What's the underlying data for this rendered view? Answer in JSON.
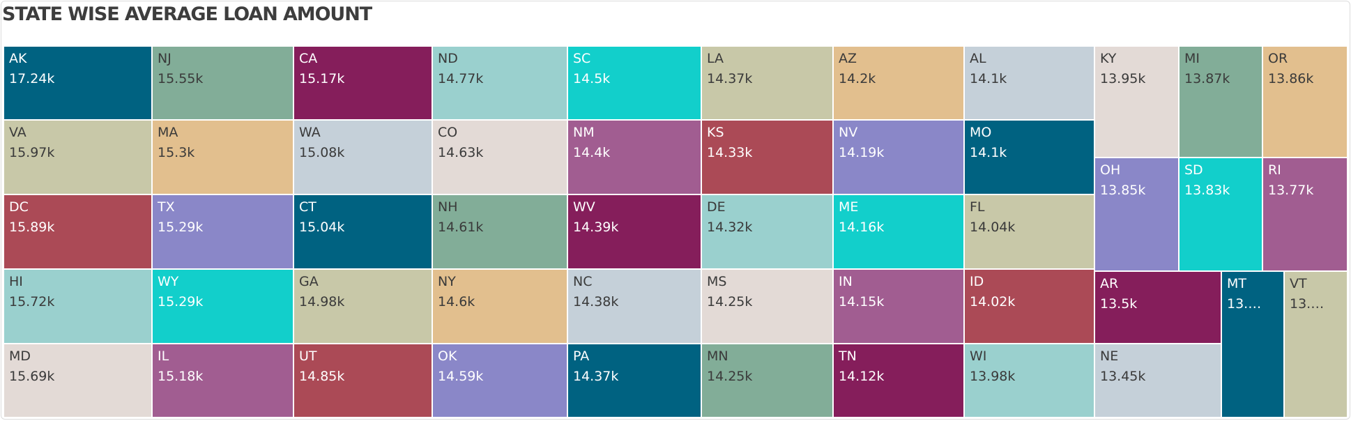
{
  "title": "STATE WISE AVERAGE LOAN AMOUNT",
  "chart_data": {
    "type": "treemap",
    "title": "STATE WISE AVERAGE LOAN AMOUNT",
    "unit": "k",
    "series": [
      {
        "label": "AK",
        "value": 17.24,
        "value_label": "17.24k",
        "color": "#006281"
      },
      {
        "label": "VA",
        "value": 15.97,
        "value_label": "15.97k",
        "color": "#c8c8a8"
      },
      {
        "label": "DC",
        "value": 15.89,
        "value_label": "15.89k",
        "color": "#ab4a56"
      },
      {
        "label": "HI",
        "value": 15.72,
        "value_label": "15.72k",
        "color": "#9ad0ce"
      },
      {
        "label": "MD",
        "value": 15.69,
        "value_label": "15.69k",
        "color": "#e3dad6"
      },
      {
        "label": "NJ",
        "value": 15.55,
        "value_label": "15.55k",
        "color": "#82ad98"
      },
      {
        "label": "MA",
        "value": 15.3,
        "value_label": "15.3k",
        "color": "#e2bf8e"
      },
      {
        "label": "TX",
        "value": 15.29,
        "value_label": "15.29k",
        "color": "#8a87c8"
      },
      {
        "label": "WY",
        "value": 15.29,
        "value_label": "15.29k",
        "color": "#12cfcb"
      },
      {
        "label": "IL",
        "value": 15.18,
        "value_label": "15.18k",
        "color": "#a15d91"
      },
      {
        "label": "CA",
        "value": 15.17,
        "value_label": "15.17k",
        "color": "#851e5b"
      },
      {
        "label": "WA",
        "value": 15.08,
        "value_label": "15.08k",
        "color": "#c5d0d9"
      },
      {
        "label": "CT",
        "value": 15.04,
        "value_label": "15.04k",
        "color": "#006281"
      },
      {
        "label": "GA",
        "value": 14.98,
        "value_label": "14.98k",
        "color": "#c8c8a8"
      },
      {
        "label": "UT",
        "value": 14.85,
        "value_label": "14.85k",
        "color": "#ab4a56"
      },
      {
        "label": "ND",
        "value": 14.77,
        "value_label": "14.77k",
        "color": "#9ad0ce"
      },
      {
        "label": "CO",
        "value": 14.63,
        "value_label": "14.63k",
        "color": "#e3dad6"
      },
      {
        "label": "NH",
        "value": 14.61,
        "value_label": "14.61k",
        "color": "#82ad98"
      },
      {
        "label": "NY",
        "value": 14.6,
        "value_label": "14.6k",
        "color": "#e2bf8e"
      },
      {
        "label": "OK",
        "value": 14.59,
        "value_label": "14.59k",
        "color": "#8a87c8"
      },
      {
        "label": "SC",
        "value": 14.5,
        "value_label": "14.5k",
        "color": "#12cfcb"
      },
      {
        "label": "NM",
        "value": 14.4,
        "value_label": "14.4k",
        "color": "#a15d91"
      },
      {
        "label": "WV",
        "value": 14.39,
        "value_label": "14.39k",
        "color": "#851e5b"
      },
      {
        "label": "NC",
        "value": 14.38,
        "value_label": "14.38k",
        "color": "#c5d0d9"
      },
      {
        "label": "PA",
        "value": 14.37,
        "value_label": "14.37k",
        "color": "#006281"
      },
      {
        "label": "LA",
        "value": 14.37,
        "value_label": "14.37k",
        "color": "#c8c8a8"
      },
      {
        "label": "KS",
        "value": 14.33,
        "value_label": "14.33k",
        "color": "#ab4a56"
      },
      {
        "label": "DE",
        "value": 14.32,
        "value_label": "14.32k",
        "color": "#9ad0ce"
      },
      {
        "label": "MS",
        "value": 14.25,
        "value_label": "14.25k",
        "color": "#e3dad6"
      },
      {
        "label": "MN",
        "value": 14.25,
        "value_label": "14.25k",
        "color": "#82ad98"
      },
      {
        "label": "AZ",
        "value": 14.2,
        "value_label": "14.2k",
        "color": "#e2bf8e"
      },
      {
        "label": "NV",
        "value": 14.19,
        "value_label": "14.19k",
        "color": "#8a87c8"
      },
      {
        "label": "ME",
        "value": 14.16,
        "value_label": "14.16k",
        "color": "#12cfcb"
      },
      {
        "label": "IN",
        "value": 14.15,
        "value_label": "14.15k",
        "color": "#a15d91"
      },
      {
        "label": "TN",
        "value": 14.12,
        "value_label": "14.12k",
        "color": "#851e5b"
      },
      {
        "label": "AL",
        "value": 14.1,
        "value_label": "14.1k",
        "color": "#c5d0d9"
      },
      {
        "label": "MO",
        "value": 14.1,
        "value_label": "14.1k",
        "color": "#006281"
      },
      {
        "label": "FL",
        "value": 14.04,
        "value_label": "14.04k",
        "color": "#c8c8a8"
      },
      {
        "label": "ID",
        "value": 14.02,
        "value_label": "14.02k",
        "color": "#ab4a56"
      },
      {
        "label": "WI",
        "value": 13.98,
        "value_label": "13.98k",
        "color": "#9ad0ce"
      },
      {
        "label": "KY",
        "value": 13.95,
        "value_label": "13.95k",
        "color": "#e3dad6"
      },
      {
        "label": "MI",
        "value": 13.87,
        "value_label": "13.87k",
        "color": "#82ad98"
      },
      {
        "label": "OR",
        "value": 13.86,
        "value_label": "13.86k",
        "color": "#e2bf8e"
      },
      {
        "label": "OH",
        "value": 13.85,
        "value_label": "13.85k",
        "color": "#8a87c8"
      },
      {
        "label": "SD",
        "value": 13.83,
        "value_label": "13.83k",
        "color": "#12cfcb"
      },
      {
        "label": "RI",
        "value": 13.77,
        "value_label": "13.77k",
        "color": "#a15d91"
      },
      {
        "label": "AR",
        "value": 13.5,
        "value_label": "13.5k",
        "color": "#851e5b"
      },
      {
        "label": "NE",
        "value": 13.45,
        "value_label": "13.45k",
        "color": "#c5d0d9"
      },
      {
        "label": "MT",
        "value": null,
        "value_label": "13.…",
        "color": "#006281"
      },
      {
        "label": "VT",
        "value": null,
        "value_label": "13.…",
        "color": "#c8c8a8"
      }
    ]
  }
}
